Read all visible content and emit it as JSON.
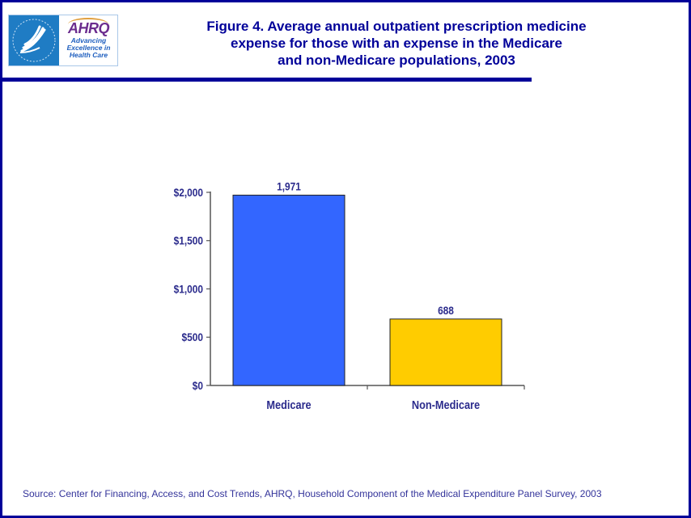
{
  "header": {
    "logo": {
      "hhs_label": "Department of Health & Human Services",
      "ahrq_mark": "AHRQ",
      "ahrq_tagline": [
        "Advancing",
        "Excellence in",
        "Health Care"
      ]
    },
    "title_lines": [
      "Figure 4. Average annual outpatient prescription medicine",
      "expense for those with an expense in the Medicare",
      "and non-Medicare populations, 2003"
    ]
  },
  "colors": {
    "frame": "#000099",
    "title": "#000099",
    "axis_text": "#2b2b8c",
    "medicare_bar": "#3366ff",
    "non_medicare_bar": "#ffcc00"
  },
  "chart_data": {
    "type": "bar",
    "title": "Figure 4. Average annual outpatient prescription medicine expense for those with an expense in the Medicare and non-Medicare populations, 2003",
    "categories": [
      "Medicare",
      "Non-Medicare"
    ],
    "values": [
      1971,
      688
    ],
    "data_labels": [
      "1,971",
      "688"
    ],
    "bar_colors": [
      "#3366ff",
      "#ffcc00"
    ],
    "xlabel": "",
    "ylabel": "",
    "ylim": [
      0,
      2000
    ],
    "yticks": [
      0,
      500,
      1000,
      1500,
      2000
    ],
    "ytick_labels": [
      "$0",
      "$500",
      "$1,000",
      "$1,500",
      "$2,000"
    ],
    "grid": false,
    "legend": "none"
  },
  "footer": {
    "source": "Source: Center for Financing, Access, and Cost Trends, AHRQ, Household Component of the Medical Expenditure Panel Survey, 2003"
  }
}
